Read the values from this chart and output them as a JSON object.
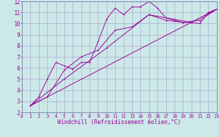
{
  "xlabel": "Windchill (Refroidissement éolien,°C)",
  "bg_color": "#cce8e8",
  "grid_color": "#aaaacc",
  "line_color": "#990099",
  "spine_color": "#7777aa",
  "xmin": 0,
  "xmax": 23,
  "ymin": 2,
  "ymax": 12,
  "xtick_fontsize": 4.8,
  "ytick_fontsize": 5.5,
  "xlabel_fontsize": 5.8,
  "line1_x": [
    1,
    2,
    3,
    4,
    5,
    6,
    7,
    8,
    9,
    10,
    11,
    12,
    13,
    14,
    15,
    16,
    17,
    18,
    19,
    20,
    21,
    22,
    23
  ],
  "line1_y": [
    2.6,
    3.4,
    5.0,
    6.5,
    6.2,
    5.9,
    6.5,
    6.5,
    8.4,
    10.4,
    11.4,
    10.8,
    11.5,
    11.5,
    12.0,
    11.4,
    10.5,
    10.3,
    10.1,
    10.1,
    10.0,
    11.0,
    11.3
  ],
  "line2_x": [
    1,
    3,
    5,
    7,
    9,
    11,
    13,
    15,
    17,
    19,
    21,
    23
  ],
  "line2_y": [
    2.6,
    3.4,
    5.8,
    7.0,
    7.6,
    9.4,
    9.7,
    10.8,
    10.3,
    10.1,
    10.3,
    11.3
  ],
  "line3_x": [
    1,
    5,
    10,
    15,
    20,
    23
  ],
  "line3_y": [
    2.6,
    5.0,
    7.8,
    10.8,
    10.1,
    11.3
  ],
  "line4_x": [
    1,
    23
  ],
  "line4_y": [
    2.6,
    11.3
  ]
}
